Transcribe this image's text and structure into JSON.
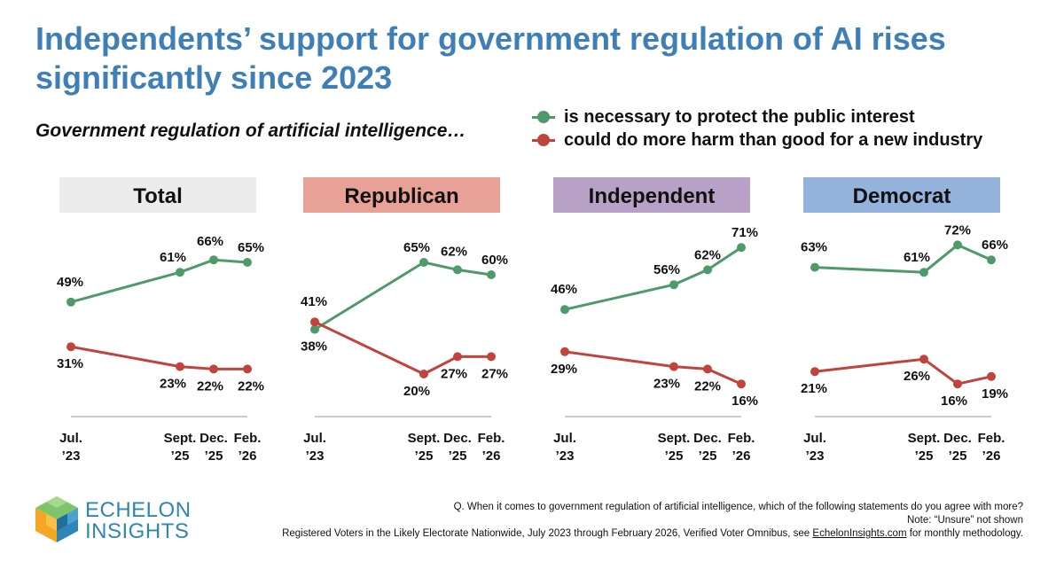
{
  "title": "Independents’ support for government regulation of AI rises significantly since 2023",
  "subtitle": "Government regulation of artificial intelligence…",
  "legend": [
    {
      "label": "is necessary to protect the public interest",
      "color": "#4f9a6a"
    },
    {
      "label": "could do more harm than good for a new industry",
      "color": "#c0443c"
    }
  ],
  "chart_data": [
    {
      "type": "line",
      "title": "Total",
      "header_color": "#ececec",
      "x": [
        "Jul. ’23",
        "Sept. ’25",
        "Dec. ’25",
        "Feb. ’26"
      ],
      "x_ticks": [
        [
          "Jul.",
          "’23"
        ],
        [
          "Sept.",
          "’25"
        ],
        [
          "Dec.",
          "’25"
        ],
        [
          "Feb.",
          "’26"
        ]
      ],
      "series": [
        {
          "name": "is necessary to protect the public interest",
          "color": "#4f9a6a",
          "values": [
            49,
            61,
            66,
            65
          ]
        },
        {
          "name": "could do more harm than good for a new industry",
          "color": "#c0443c",
          "values": [
            31,
            23,
            22,
            22
          ]
        }
      ],
      "ylim": [
        10,
        75
      ]
    },
    {
      "type": "line",
      "title": "Republican",
      "header_color": "#e8a195",
      "x": [
        "Jul. ’23",
        "Sept. ’25",
        "Dec. ’25",
        "Feb. ’26"
      ],
      "x_ticks": [
        [
          "Jul.",
          "’23"
        ],
        [
          "Sept.",
          "’25"
        ],
        [
          "Dec.",
          "’25"
        ],
        [
          "Feb.",
          "’26"
        ]
      ],
      "series": [
        {
          "name": "is necessary to protect the public interest",
          "color": "#4f9a6a",
          "values": [
            38,
            65,
            62,
            60
          ]
        },
        {
          "name": "could do more harm than good for a new industry",
          "color": "#c0443c",
          "values": [
            41,
            20,
            27,
            27
          ]
        }
      ],
      "ylim": [
        10,
        75
      ]
    },
    {
      "type": "line",
      "title": "Independent",
      "header_color": "#b8a1c7",
      "x": [
        "Jul. ’23",
        "Sept. ’25",
        "Dec. ’25",
        "Feb. ’26"
      ],
      "x_ticks": [
        [
          "Jul.",
          "’23"
        ],
        [
          "Sept.",
          "’25"
        ],
        [
          "Dec.",
          "’25"
        ],
        [
          "Feb.",
          "’26"
        ]
      ],
      "series": [
        {
          "name": "is necessary to protect the public interest",
          "color": "#4f9a6a",
          "values": [
            46,
            56,
            62,
            71
          ]
        },
        {
          "name": "could do more harm than good for a new industry",
          "color": "#c0443c",
          "values": [
            29,
            23,
            22,
            16
          ]
        }
      ],
      "ylim": [
        10,
        75
      ]
    },
    {
      "type": "line",
      "title": "Democrat",
      "header_color": "#93b3dc",
      "x": [
        "Jul. ’23",
        "Sept. ’25",
        "Dec. ’25",
        "Feb. ’26"
      ],
      "x_ticks": [
        [
          "Jul.",
          "’23"
        ],
        [
          "Sept.",
          "’25"
        ],
        [
          "Dec.",
          "’25"
        ],
        [
          "Feb.",
          "’26"
        ]
      ],
      "series": [
        {
          "name": "is necessary to protect the public interest",
          "color": "#4f9a6a",
          "values": [
            63,
            61,
            72,
            66
          ]
        },
        {
          "name": "could do more harm than good for a new industry",
          "color": "#c0443c",
          "values": [
            21,
            26,
            16,
            19
          ]
        }
      ],
      "ylim": [
        10,
        75
      ]
    }
  ],
  "logo": {
    "line1": "ECHELON",
    "line2": "INSIGHTS"
  },
  "notes": {
    "question": "Q. When it comes to government regulation of artificial intelligence, which of the following statements do you agree with more?",
    "note": "Note: “Unsure” not shown",
    "source_prefix": "Registered Voters in the Likely Electorate Nationwide, July 2023 through February 2026, Verified Voter Omnibus, see ",
    "source_link": "EchelonInsights.com",
    "source_suffix": " for monthly methodology."
  }
}
